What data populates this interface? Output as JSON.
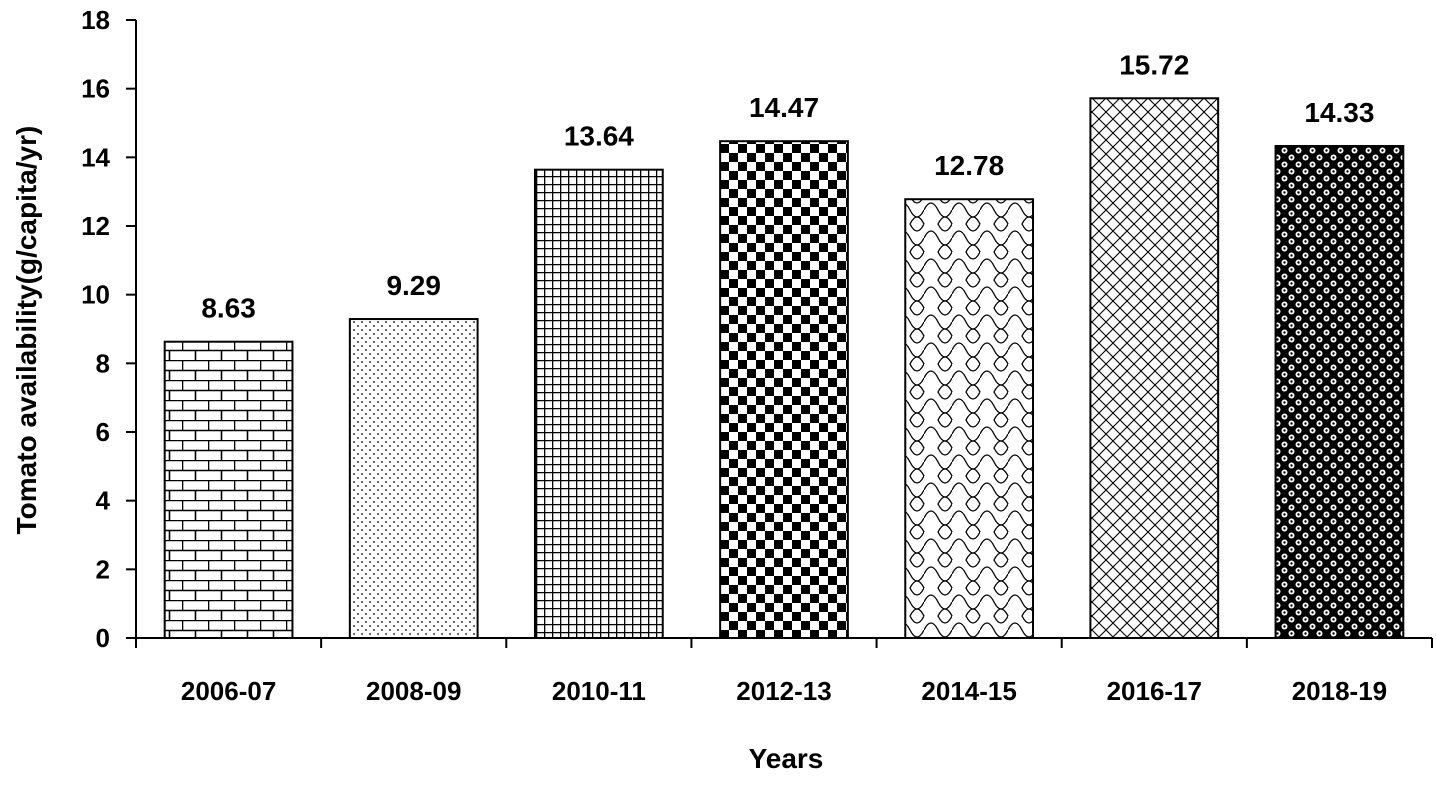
{
  "chart_data": {
    "type": "bar",
    "title": "",
    "xlabel": "Years",
    "ylabel": "Tomato availability(g/capita/yr)",
    "ylim": [
      0,
      18
    ],
    "yticks": [
      0,
      2,
      4,
      6,
      8,
      10,
      12,
      14,
      16,
      18
    ],
    "categories": [
      "2006-07",
      "2008-09",
      "2010-11",
      "2012-13",
      "2014-15",
      "2016-17",
      "2018-19"
    ],
    "values": [
      8.63,
      9.29,
      13.64,
      14.47,
      12.78,
      15.72,
      14.33
    ],
    "data_labels": [
      "8.63",
      "9.29",
      "13.64",
      "14.47",
      "12.78",
      "15.72",
      "14.33"
    ],
    "bar_patterns": [
      "brick",
      "dots",
      "grid",
      "checker",
      "scales",
      "diamond-lattice",
      "checker-dots"
    ],
    "grid": false,
    "legend": "none",
    "colors": {
      "ink": "#000000",
      "background": "#ffffff"
    }
  }
}
